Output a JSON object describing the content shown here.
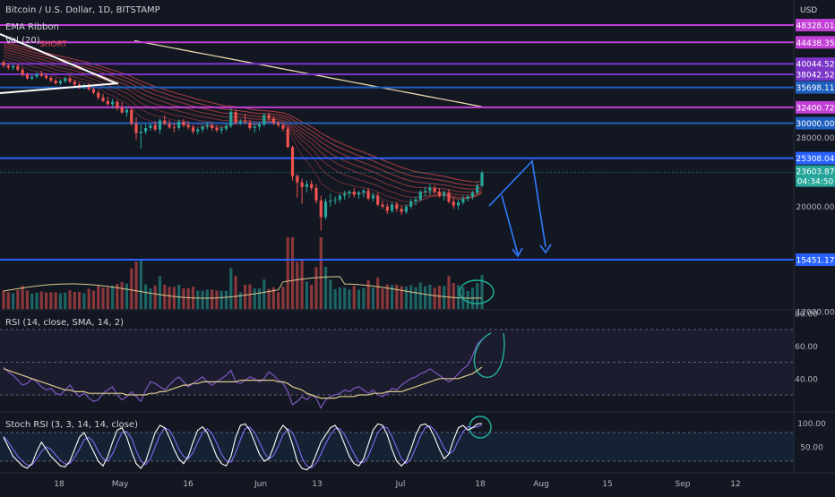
{
  "header": {
    "title": "Bitcoin / U.S. Dollar, 1D, BITSTAMP",
    "currency": "USD",
    "indicator_1": "EMA Ribbon",
    "indicator_2": "Vol (20)",
    "short_label": "SHORT"
  },
  "colors": {
    "background": "#131722",
    "up": "#26a69a",
    "down": "#ef5350",
    "level_magenta": "#c13fd4",
    "level_purple": "#7b35c7",
    "level_blue": "#2962ff",
    "level_dark_blue": "#1f5fbf",
    "annotation": "#2f7bff",
    "circle": "#22b39a",
    "rsi_line": "#7e57c2",
    "rsi_ma": "#d8c98a",
    "stoch_k": "#ffffff",
    "stoch_d": "#7b6ef6",
    "ema_slow": "#f0e0b0",
    "trend_line": "#ffffff"
  },
  "chart_data": [
    {
      "type": "candlestick",
      "title": "Bitcoin / U.S. Dollar, 1D, BITSTAMP",
      "y_scale": "log",
      "y_ticks": [
        12000.0,
        20000.0,
        28000.0
      ],
      "horizontal_levels": [
        {
          "value": 48328.01,
          "label": "48328.01",
          "color": "level_magenta"
        },
        {
          "value": 44438.35,
          "label": "44438.35",
          "color": "level_magenta"
        },
        {
          "value": 40044.52,
          "label": "40044.52",
          "color": "level_purple"
        },
        {
          "value": 38042.52,
          "label": "38042.52",
          "color": "level_purple"
        },
        {
          "value": 35698.11,
          "label": "35698.11",
          "color": "level_dark_blue"
        },
        {
          "value": 32400.72,
          "label": "32400.72",
          "color": "level_magenta"
        },
        {
          "value": 30000.0,
          "label": "30000.00",
          "color": "level_dark_blue"
        },
        {
          "value": 25308.04,
          "label": "25308.04",
          "color": "level_blue"
        },
        {
          "value": 15451.17,
          "label": "15451.17",
          "color": "level_blue"
        }
      ],
      "last_price": {
        "value": 23603.87,
        "label": "23603.87",
        "countdown": "04:34:50"
      },
      "x_ticks": [
        "18",
        "May",
        "16",
        "Jun",
        "13",
        "Jul",
        "18",
        "Aug",
        "15",
        "Sep",
        "12"
      ],
      "candles_ohlc": [
        [
          40400,
          40700,
          39300,
          39700
        ],
        [
          39700,
          40100,
          38900,
          39300
        ],
        [
          39300,
          39900,
          38800,
          39600
        ],
        [
          39600,
          40000,
          38600,
          38900
        ],
        [
          38900,
          39400,
          37600,
          38000
        ],
        [
          38000,
          38400,
          37100,
          37300
        ],
        [
          37300,
          37900,
          36900,
          37600
        ],
        [
          37600,
          38400,
          37300,
          38100
        ],
        [
          38100,
          38700,
          37500,
          37800
        ],
        [
          37800,
          38200,
          37100,
          37400
        ],
        [
          37400,
          37700,
          36600,
          36900
        ],
        [
          36900,
          37300,
          36200,
          36400
        ],
        [
          36400,
          37100,
          36100,
          36800
        ],
        [
          36800,
          37600,
          36500,
          37300
        ],
        [
          37300,
          37700,
          36400,
          36700
        ],
        [
          36700,
          37000,
          35900,
          36200
        ],
        [
          36200,
          36500,
          35400,
          35700
        ],
        [
          35700,
          36400,
          35400,
          36100
        ],
        [
          36100,
          36500,
          35100,
          35400
        ],
        [
          35400,
          35700,
          34500,
          34800
        ],
        [
          34800,
          35200,
          33600,
          34000
        ],
        [
          34000,
          34600,
          33200,
          33400
        ],
        [
          33400,
          34100,
          32700,
          32900
        ],
        [
          32900,
          33800,
          32200,
          33300
        ],
        [
          33300,
          33600,
          31900,
          32300
        ],
        [
          32300,
          33200,
          31400,
          31600
        ],
        [
          31600,
          32600,
          30900,
          32000
        ],
        [
          32000,
          32400,
          29600,
          29900
        ],
        [
          29900,
          30900,
          27700,
          28600
        ],
        [
          28600,
          29800,
          26500,
          28800
        ],
        [
          28800,
          29900,
          28400,
          29300
        ],
        [
          29300,
          30100,
          28900,
          29700
        ],
        [
          29700,
          30300,
          28900,
          29100
        ],
        [
          29100,
          30700,
          28500,
          30400
        ],
        [
          30400,
          31200,
          29700,
          29900
        ],
        [
          29900,
          30500,
          29200,
          29400
        ],
        [
          29400,
          30000,
          28700,
          29300
        ],
        [
          29300,
          30500,
          29000,
          30200
        ],
        [
          30200,
          30600,
          29400,
          29700
        ],
        [
          29700,
          30300,
          29100,
          29400
        ],
        [
          29400,
          29800,
          28500,
          28800
        ],
        [
          28800,
          29400,
          28400,
          29100
        ],
        [
          29100,
          29700,
          28700,
          29500
        ],
        [
          29500,
          30200,
          29100,
          29700
        ],
        [
          29700,
          30000,
          28900,
          29300
        ],
        [
          29300,
          29700,
          28700,
          29000
        ],
        [
          29000,
          29500,
          28500,
          29200
        ],
        [
          29200,
          29900,
          28900,
          29600
        ],
        [
          29600,
          32300,
          29300,
          31700
        ],
        [
          31700,
          32000,
          29800,
          30000
        ],
        [
          30000,
          30600,
          29700,
          30300
        ],
        [
          30300,
          31400,
          29900,
          30100
        ],
        [
          30100,
          30500,
          29000,
          29300
        ],
        [
          29300,
          29900,
          28700,
          29500
        ],
        [
          29500,
          30200,
          29000,
          29800
        ],
        [
          29800,
          31500,
          29500,
          31200
        ],
        [
          31200,
          31600,
          30400,
          30700
        ],
        [
          30700,
          31000,
          29700,
          30000
        ],
        [
          30000,
          30300,
          29400,
          29700
        ],
        [
          29700,
          30100,
          28800,
          29200
        ],
        [
          29200,
          29500,
          26600,
          26700
        ],
        [
          26700,
          26900,
          22700,
          23200
        ],
        [
          23200,
          23400,
          20900,
          22500
        ],
        [
          22500,
          22900,
          20300,
          22000
        ],
        [
          22000,
          22700,
          21400,
          22300
        ],
        [
          22300,
          22700,
          21600,
          21900
        ],
        [
          21900,
          22300,
          20300,
          20600
        ],
        [
          20600,
          21100,
          17800,
          19000
        ],
        [
          19000,
          20800,
          18800,
          20500
        ],
        [
          20500,
          21300,
          20000,
          20600
        ],
        [
          20600,
          21000,
          20200,
          20700
        ],
        [
          20700,
          21300,
          20400,
          21100
        ],
        [
          21100,
          21600,
          20700,
          21300
        ],
        [
          21300,
          21700,
          20900,
          21500
        ],
        [
          21500,
          21900,
          20900,
          21200
        ],
        [
          21200,
          21600,
          20800,
          21400
        ],
        [
          21400,
          21800,
          20900,
          21600
        ],
        [
          21600,
          21900,
          20600,
          20800
        ],
        [
          20800,
          21400,
          20500,
          21100
        ],
        [
          21100,
          21400,
          20000,
          20200
        ],
        [
          20200,
          20600,
          19800,
          20000
        ],
        [
          20000,
          20300,
          19300,
          19600
        ],
        [
          19600,
          20400,
          19400,
          20200
        ],
        [
          20200,
          20500,
          19500,
          19800
        ],
        [
          19800,
          20100,
          19200,
          19500
        ],
        [
          19500,
          20200,
          19300,
          20000
        ],
        [
          20000,
          20800,
          19800,
          20500
        ],
        [
          20500,
          21000,
          20100,
          20700
        ],
        [
          20700,
          21700,
          20500,
          21500
        ],
        [
          21500,
          22000,
          21000,
          21600
        ],
        [
          21600,
          22300,
          21200,
          21900
        ],
        [
          21900,
          22200,
          21300,
          21500
        ],
        [
          21500,
          21900,
          20900,
          21100
        ],
        [
          21100,
          21600,
          20600,
          21400
        ],
        [
          21400,
          21800,
          20300,
          20500
        ],
        [
          20500,
          20900,
          19800,
          20100
        ],
        [
          20100,
          20700,
          19700,
          20400
        ],
        [
          20400,
          21100,
          20200,
          20800
        ],
        [
          20800,
          21200,
          20500,
          21000
        ],
        [
          21000,
          21600,
          20700,
          21400
        ],
        [
          21400,
          22400,
          21200,
          22100
        ],
        [
          22100,
          23800,
          22000,
          23600
        ]
      ],
      "ema_ribbon_count": 8,
      "series_note": "volume shown below price; EMA ribbon red bands; long EMA pale yellow"
    },
    {
      "type": "line",
      "title": "RSI (14, close, SMA, 14, 2)",
      "y_ticks": [
        80.0,
        60.0,
        40.0
      ],
      "bands": [
        70,
        30
      ],
      "rsi": [
        47,
        44,
        42,
        39,
        36,
        37,
        40,
        38,
        35,
        33,
        34,
        31,
        30,
        33,
        36,
        32,
        29,
        31,
        28,
        26,
        27,
        31,
        33,
        35,
        30,
        27,
        29,
        32,
        29,
        26,
        33,
        38,
        37,
        35,
        33,
        36,
        39,
        41,
        38,
        35,
        37,
        39,
        41,
        38,
        36,
        38,
        40,
        42,
        45,
        38,
        37,
        39,
        41,
        40,
        38,
        40,
        44,
        42,
        39,
        37,
        32,
        24,
        26,
        29,
        27,
        30,
        28,
        22,
        27,
        29,
        30,
        31,
        33,
        32,
        34,
        35,
        33,
        31,
        33,
        30,
        29,
        31,
        34,
        33,
        36,
        38,
        40,
        41,
        43,
        44,
        46,
        44,
        42,
        40,
        38,
        40,
        43,
        46,
        48,
        54,
        61,
        64
      ],
      "rsi_ma": [
        46,
        45,
        44,
        43,
        42,
        41,
        40,
        39,
        38,
        37,
        36,
        35,
        34,
        33,
        33,
        32,
        32,
        32,
        31,
        31,
        31,
        31,
        31,
        31,
        31,
        31,
        30,
        30,
        30,
        30,
        30,
        31,
        31,
        32,
        32,
        33,
        34,
        35,
        36,
        36,
        37,
        37,
        38,
        38,
        38,
        38,
        38,
        38,
        38,
        38,
        39,
        39,
        39,
        39,
        39,
        39,
        39,
        39,
        38,
        38,
        37,
        35,
        34,
        33,
        31,
        30,
        29,
        28,
        28,
        28,
        28,
        29,
        29,
        29,
        29,
        30,
        30,
        30,
        31,
        31,
        31,
        32,
        32,
        32,
        32,
        33,
        34,
        35,
        36,
        37,
        38,
        39,
        40,
        40,
        40,
        40,
        40,
        41,
        42,
        43,
        45,
        47
      ]
    },
    {
      "type": "line",
      "title": "Stoch RSI (3, 3, 14, 14, close)",
      "y_ticks": [
        100.0,
        50.0
      ],
      "bands": [
        80,
        20
      ],
      "k": [
        70,
        50,
        30,
        20,
        10,
        5,
        15,
        40,
        60,
        45,
        30,
        20,
        10,
        8,
        20,
        45,
        70,
        80,
        60,
        40,
        20,
        10,
        30,
        60,
        85,
        90,
        70,
        40,
        15,
        5,
        20,
        50,
        80,
        95,
        90,
        70,
        45,
        25,
        15,
        30,
        60,
        85,
        92,
        80,
        55,
        30,
        15,
        10,
        30,
        70,
        95,
        98,
        85,
        60,
        35,
        20,
        25,
        50,
        80,
        95,
        85,
        55,
        20,
        5,
        2,
        10,
        35,
        60,
        75,
        90,
        95,
        80,
        55,
        30,
        15,
        10,
        25,
        55,
        85,
        98,
        95,
        75,
        45,
        20,
        10,
        20,
        45,
        75,
        95,
        98,
        90,
        70,
        45,
        25,
        35,
        65,
        90,
        95,
        85,
        90,
        98,
        99
      ],
      "d": [
        72,
        60,
        45,
        30,
        20,
        12,
        12,
        25,
        40,
        50,
        45,
        33,
        22,
        14,
        15,
        28,
        45,
        65,
        70,
        60,
        40,
        25,
        20,
        35,
        58,
        80,
        82,
        68,
        42,
        20,
        13,
        25,
        50,
        75,
        90,
        85,
        68,
        45,
        30,
        25,
        38,
        60,
        80,
        88,
        78,
        58,
        35,
        20,
        18,
        38,
        65,
        88,
        92,
        80,
        60,
        38,
        25,
        32,
        52,
        75,
        88,
        80,
        55,
        27,
        10,
        6,
        16,
        35,
        57,
        75,
        88,
        88,
        75,
        55,
        35,
        18,
        17,
        30,
        55,
        80,
        92,
        90,
        72,
        48,
        25,
        15,
        25,
        48,
        72,
        90,
        94,
        85,
        68,
        47,
        35,
        42,
        63,
        82,
        92,
        90,
        92,
        96
      ]
    }
  ]
}
